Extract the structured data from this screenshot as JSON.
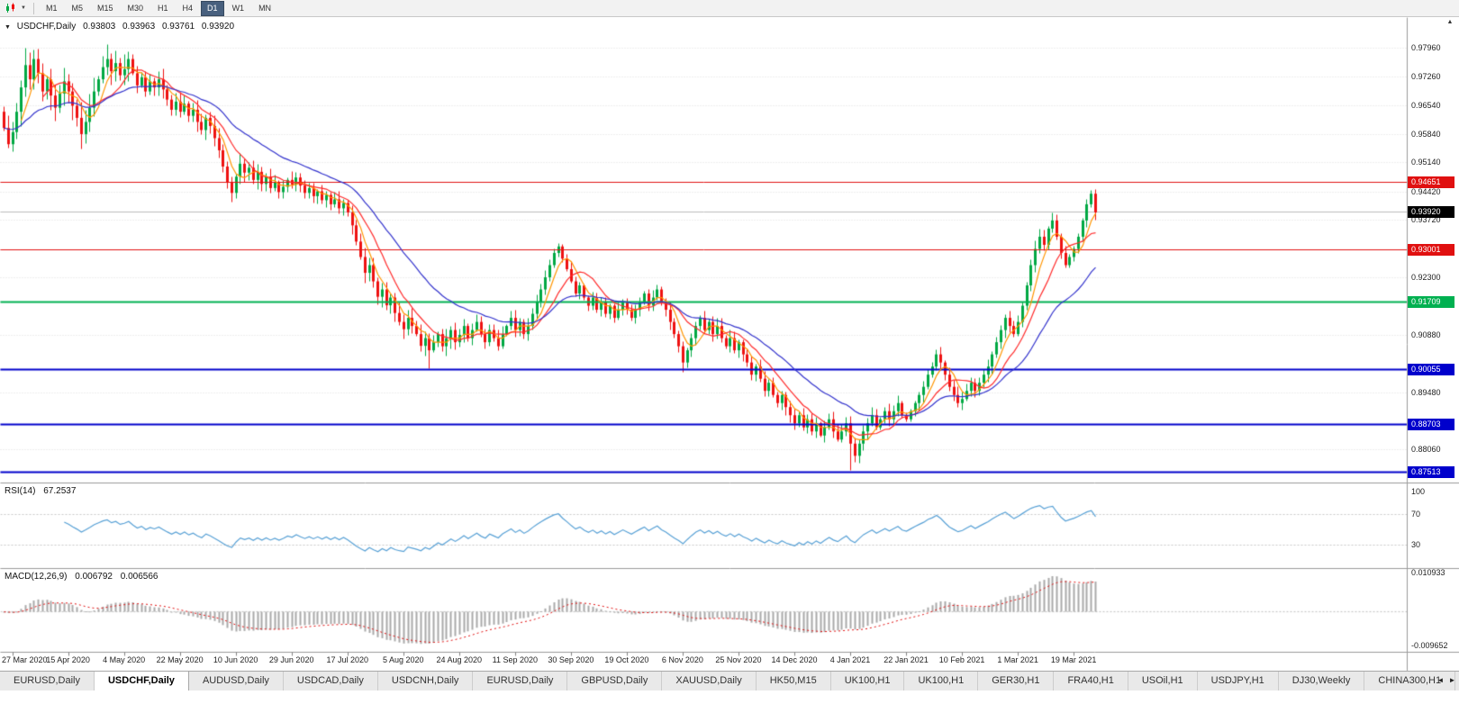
{
  "toolbar": {
    "timeframes": [
      "M1",
      "M5",
      "M15",
      "M30",
      "H1",
      "H4",
      "D1",
      "W1",
      "MN"
    ],
    "active_timeframe": "D1"
  },
  "icons": {
    "caret_down": "▼",
    "header_dropdown": "▼",
    "scroll_up": "▲",
    "tab_left": "◄",
    "tab_right": "►"
  },
  "chart_header": {
    "symbol": "USDCHF,Daily",
    "open": "0.93803",
    "high": "0.93963",
    "low": "0.93761",
    "close": "0.93920"
  },
  "chart_data": {
    "type": "candlestick",
    "symbol": "USDCHF",
    "timeframe": "Daily",
    "price_range": {
      "min": 0.8725,
      "max": 0.987
    },
    "candle_colors": {
      "up": "#00a843",
      "down": "#ee1111"
    },
    "y_ticks": [
      {
        "value": 0.9796,
        "label": "0.97960"
      },
      {
        "value": 0.9726,
        "label": "0.97260"
      },
      {
        "value": 0.9654,
        "label": "0.96540"
      },
      {
        "value": 0.9584,
        "label": "0.95840"
      },
      {
        "value": 0.9514,
        "label": "0.95140"
      },
      {
        "value": 0.9442,
        "label": "0.94420"
      },
      {
        "value": 0.9372,
        "label": "0.93720"
      },
      {
        "value": 0.923,
        "label": "0.92300"
      },
      {
        "value": 0.9088,
        "label": "0.90880"
      },
      {
        "value": 0.8948,
        "label": "0.89480"
      },
      {
        "value": 0.8806,
        "label": "0.88060"
      }
    ],
    "levels": [
      {
        "value": 0.94651,
        "label": "0.94651",
        "color": "#e01010",
        "width": 1
      },
      {
        "value": 0.93001,
        "label": "0.93001",
        "color": "#e01010",
        "width": 1
      },
      {
        "value": 0.91709,
        "label": "0.91709",
        "color": "#00b050",
        "width": 2
      },
      {
        "value": 0.90055,
        "label": "0.90055",
        "color": "#0000cc",
        "width": 2
      },
      {
        "value": 0.88703,
        "label": "0.88703",
        "color": "#0000cc",
        "width": 2
      },
      {
        "value": 0.87513,
        "label": "0.87513",
        "color": "#0000cc",
        "width": 2
      }
    ],
    "current_price": {
      "value": 0.9392,
      "label": "0.93920",
      "tag_color": "#000000",
      "line_color": "#bbbbbb"
    },
    "moving_averages": [
      {
        "period": 5,
        "type": "sma",
        "color": "#ff9500"
      },
      {
        "period": 10,
        "type": "sma",
        "color": "#ff2a2a"
      },
      {
        "period": 26,
        "type": "ema",
        "color": "#3232cc"
      }
    ],
    "x_labels": [
      {
        "index": 2,
        "label": "27 Mar 2020"
      },
      {
        "index": 15,
        "label": "15 Apr 2020"
      },
      {
        "index": 28,
        "label": "4 May 2020"
      },
      {
        "index": 41,
        "label": "22 May 2020"
      },
      {
        "index": 54,
        "label": "10 Jun 2020"
      },
      {
        "index": 67,
        "label": "29 Jun 2020"
      },
      {
        "index": 80,
        "label": "17 Jul 2020"
      },
      {
        "index": 93,
        "label": "5 Aug 2020"
      },
      {
        "index": 106,
        "label": "24 Aug 2020"
      },
      {
        "index": 119,
        "label": "11 Sep 2020"
      },
      {
        "index": 132,
        "label": "30 Sep 2020"
      },
      {
        "index": 145,
        "label": "19 Oct 2020"
      },
      {
        "index": 158,
        "label": "6 Nov 2020"
      },
      {
        "index": 171,
        "label": "25 Nov 2020"
      },
      {
        "index": 184,
        "label": "14 Dec 2020"
      },
      {
        "index": 197,
        "label": "4 Jan 2021"
      },
      {
        "index": 210,
        "label": "22 Jan 2021"
      },
      {
        "index": 223,
        "label": "10 Feb 2021"
      },
      {
        "index": 236,
        "label": "1 Mar 2021"
      },
      {
        "index": 249,
        "label": "19 Mar 2021"
      }
    ],
    "first_open": 0.964,
    "closes": [
      0.96,
      0.956,
      0.959,
      0.964,
      0.97,
      0.9755,
      0.972,
      0.977,
      0.9735,
      0.969,
      0.972,
      0.968,
      0.965,
      0.9685,
      0.9715,
      0.969,
      0.9655,
      0.9625,
      0.9585,
      0.9615,
      0.965,
      0.969,
      0.972,
      0.975,
      0.977,
      0.974,
      0.976,
      0.973,
      0.9745,
      0.977,
      0.9735,
      0.9705,
      0.9725,
      0.969,
      0.9715,
      0.97,
      0.972,
      0.9695,
      0.967,
      0.9645,
      0.9665,
      0.964,
      0.966,
      0.963,
      0.9645,
      0.9615,
      0.9595,
      0.9625,
      0.9605,
      0.9575,
      0.9545,
      0.9505,
      0.9465,
      0.944,
      0.948,
      0.9512,
      0.949,
      0.9502,
      0.9472,
      0.9492,
      0.9462,
      0.948,
      0.9452,
      0.9465,
      0.9442,
      0.9455,
      0.9472,
      0.946,
      0.9478,
      0.9458,
      0.944,
      0.9452,
      0.9432,
      0.9444,
      0.9422,
      0.9435,
      0.9412,
      0.9424,
      0.9402,
      0.9415,
      0.9392,
      0.936,
      0.932,
      0.9282,
      0.9243,
      0.9262,
      0.9222,
      0.9184,
      0.9202,
      0.9163,
      0.9182,
      0.9144,
      0.9122,
      0.9104,
      0.9132,
      0.9112,
      0.9092,
      0.9063,
      0.9082,
      0.9052,
      0.9072,
      0.9092,
      0.9062,
      0.9082,
      0.9102,
      0.9072,
      0.909,
      0.9112,
      0.9082,
      0.9102,
      0.9122,
      0.9092,
      0.9072,
      0.9102,
      0.9082,
      0.9062,
      0.9092,
      0.9112,
      0.9132,
      0.9102,
      0.9122,
      0.9092,
      0.9112,
      0.9142,
      0.9172,
      0.9202,
      0.9232,
      0.9262,
      0.9292,
      0.9308,
      0.9278,
      0.9252,
      0.9222,
      0.9192,
      0.9212,
      0.9182,
      0.9162,
      0.9182,
      0.9152,
      0.9172,
      0.9142,
      0.9162,
      0.9132,
      0.9152,
      0.9172,
      0.9152,
      0.9132,
      0.9152,
      0.9172,
      0.9192,
      0.9162,
      0.9182,
      0.9202,
      0.9172,
      0.9152,
      0.9122,
      0.9092,
      0.9062,
      0.9022,
      0.9052,
      0.9082,
      0.9112,
      0.9132,
      0.9102,
      0.9122,
      0.9092,
      0.9112,
      0.9082,
      0.9062,
      0.9082,
      0.9052,
      0.9072,
      0.9042,
      0.9022,
      0.8992,
      0.9012,
      0.8982,
      0.8952,
      0.8972,
      0.8942,
      0.8922,
      0.8942,
      0.8912,
      0.8892,
      0.8872,
      0.8892,
      0.8862,
      0.8882,
      0.8852,
      0.8872,
      0.8842,
      0.8862,
      0.8882,
      0.8852,
      0.8832,
      0.8852,
      0.8872,
      0.8822,
      0.8792,
      0.8822,
      0.8852,
      0.8872,
      0.8892,
      0.8862,
      0.8882,
      0.8902,
      0.8882,
      0.8902,
      0.8922,
      0.8892,
      0.8882,
      0.8902,
      0.8922,
      0.8942,
      0.8962,
      0.8992,
      0.9012,
      0.9042,
      0.9022,
      0.8992,
      0.8962,
      0.8942,
      0.8922,
      0.8932,
      0.8952,
      0.8972,
      0.8952,
      0.8972,
      0.8992,
      0.9012,
      0.9042,
      0.9072,
      0.9102,
      0.9132,
      0.9112,
      0.9092,
      0.9122,
      0.9162,
      0.9212,
      0.9262,
      0.9302,
      0.9332,
      0.9312,
      0.9352,
      0.9372,
      0.9332,
      0.9292,
      0.9262,
      0.9282,
      0.9302,
      0.9332,
      0.9372,
      0.9412,
      0.9438,
      0.9392
    ],
    "wick_overrides": {
      "5": {
        "high": 0.9796
      },
      "29": {
        "high": 0.9788
      },
      "53": {
        "low": 0.9417
      },
      "93": {
        "low": 0.908
      },
      "99": {
        "low": 0.9006
      },
      "129": {
        "high": 0.9312
      },
      "158": {
        "low": 0.8998
      },
      "197": {
        "low": 0.8757
      },
      "217": {
        "high": 0.9046
      },
      "244": {
        "high": 0.9377
      },
      "253": {
        "high": 0.9446
      }
    }
  },
  "rsi": {
    "title": "RSI(14)",
    "value": "67.2537",
    "line_color": "#57a0d5",
    "axis": [
      {
        "value": 100,
        "label": "100",
        "line": false
      },
      {
        "value": 70,
        "label": "70",
        "line": true
      },
      {
        "value": 30,
        "label": "30",
        "line": true
      }
    ]
  },
  "macd": {
    "title": "MACD(12,26,9)",
    "value_main": "0.006792",
    "value_signal": "0.006566",
    "histogram_color": "#a9a9a9",
    "signal_color": "#e01010",
    "range": {
      "min": -0.0106,
      "max": 0.0112
    },
    "axis": [
      {
        "value": 0.010933,
        "label": "0.010933"
      },
      {
        "value": -0.009652,
        "label": "-0.009652"
      }
    ]
  },
  "tabs": {
    "items": [
      "EURUSD,Daily",
      "USDCHF,Daily",
      "AUDUSD,Daily",
      "USDCAD,Daily",
      "USDCNH,Daily",
      "EURUSD,Daily",
      "GBPUSD,Daily",
      "XAUUSD,Daily",
      "HK50,M15",
      "UK100,H1",
      "UK100,H1",
      "GER30,H1",
      "FRA40,H1",
      "USOil,H1",
      "USDJPY,H1",
      "DJ30,Weekly",
      "CHINA300,H1"
    ],
    "active_index": 1
  }
}
